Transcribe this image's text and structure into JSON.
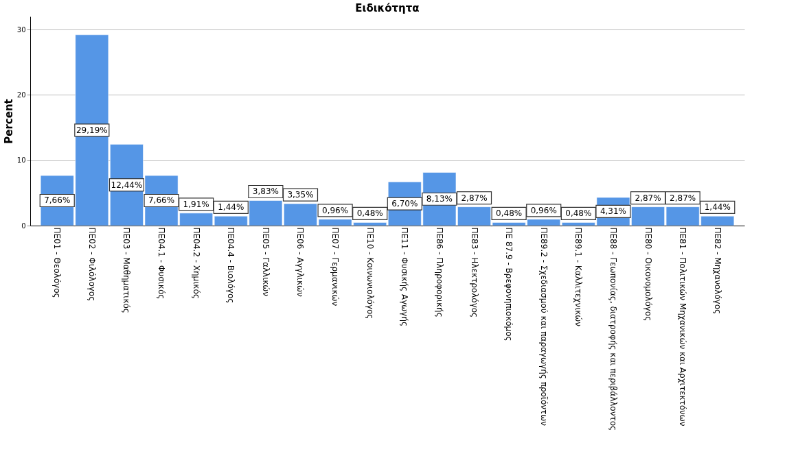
{
  "chart_data": {
    "type": "bar",
    "title": "Ειδικότητα",
    "ylabel": "Percent",
    "categories": [
      "ΠΕ01 - Θεολόγος",
      "ΠΕ02 - Φιλόλογος",
      "ΠΕ03 - Μαθηματικός",
      "ΠΕ04.1 - Φυσικός",
      "ΠΕ04.2 - Χημικός",
      "ΠΕ04.4 - Βιολόγος",
      "ΠΕ05 - Γαλλικών",
      "ΠΕ06 - Αγγλικών",
      "ΠΕ07 - Γερμανικών",
      "ΠΕ10 - Κοινωνιολόγος",
      "ΠΕ11 - Φυσικής Αγωγής",
      "ΠΕ86 - Πληροφορικής",
      "ΠΕ83 - Ηλεκτρολόγος",
      "ΠΕ 87.9 - Βρεφονηπιοκόμος",
      "ΠΕ89.2 - Σχεδιασμού και παραγωγής προϊόντων",
      "ΠΕ89.1 - Καλλιτεχνικών",
      "ΠΕ88 - Γεωπονίας, διατροφής και περιβάλλοντος",
      "ΠΕ80 - Οικονομολόγος",
      "ΠΕ81 - Πολιτικών Μηχανικών και Αρχιτεκτόνων",
      "ΠΕ82 - Μηχανολόγος"
    ],
    "values": [
      7.66,
      29.19,
      12.44,
      7.66,
      1.91,
      1.44,
      3.83,
      3.35,
      0.96,
      0.48,
      6.7,
      8.13,
      2.87,
      0.48,
      0.96,
      0.48,
      4.31,
      2.87,
      2.87,
      1.44
    ],
    "value_labels": [
      "7,66%",
      "29,19%",
      "12,44%",
      "7,66%",
      "1,91%",
      "1,44%",
      "3,83%",
      "3,35%",
      "0,96%",
      "0,48%",
      "6,70%",
      "8,13%",
      "2,87%",
      "0,48%",
      "0,96%",
      "0,48%",
      "4,31%",
      "2,87%",
      "2,87%",
      "1,44%"
    ],
    "color": "#5596e6",
    "ylim": [
      0,
      32
    ],
    "yticks": [
      0,
      10,
      20,
      30
    ],
    "grid": "y"
  }
}
